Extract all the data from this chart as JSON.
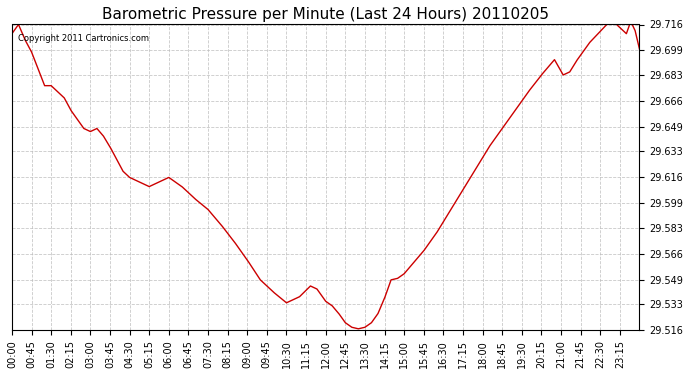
{
  "title": "Barometric Pressure per Minute (Last 24 Hours) 20110205",
  "copyright": "Copyright 2011 Cartronics.com",
  "line_color": "#cc0000",
  "background_color": "#ffffff",
  "grid_color": "#bbbbbb",
  "ylim": [
    29.516,
    29.716
  ],
  "yticks": [
    29.516,
    29.533,
    29.549,
    29.566,
    29.583,
    29.599,
    29.616,
    29.633,
    29.649,
    29.666,
    29.683,
    29.699,
    29.716
  ],
  "xtick_labels": [
    "00:00",
    "00:45",
    "01:30",
    "02:15",
    "03:00",
    "03:45",
    "04:30",
    "05:15",
    "06:00",
    "06:45",
    "07:30",
    "08:15",
    "09:00",
    "09:45",
    "10:30",
    "11:15",
    "12:00",
    "12:45",
    "13:30",
    "14:15",
    "15:00",
    "15:45",
    "16:30",
    "17:15",
    "18:00",
    "18:45",
    "19:30",
    "20:15",
    "21:00",
    "21:45",
    "22:30",
    "23:15"
  ],
  "keypoints_t": [
    0,
    15,
    30,
    45,
    75,
    90,
    105,
    120,
    135,
    165,
    180,
    195,
    210,
    225,
    240,
    255,
    270,
    315,
    360,
    390,
    420,
    450,
    480,
    510,
    540,
    570,
    600,
    630,
    660,
    685,
    700,
    720,
    735,
    750,
    765,
    780,
    795,
    810,
    825,
    840,
    855,
    870,
    885,
    900,
    915,
    945,
    975,
    1005,
    1035,
    1065,
    1095,
    1125,
    1155,
    1185,
    1215,
    1245,
    1265,
    1280,
    1295,
    1310,
    1325,
    1345,
    1365,
    1380,
    1395,
    1410,
    1420,
    1430,
    1440
  ],
  "keypoints_p": [
    29.71,
    29.716,
    29.706,
    29.698,
    29.676,
    29.676,
    29.672,
    29.668,
    29.66,
    29.648,
    29.646,
    29.648,
    29.643,
    29.636,
    29.628,
    29.62,
    29.616,
    29.61,
    29.616,
    29.61,
    29.602,
    29.595,
    29.585,
    29.574,
    29.562,
    29.549,
    29.541,
    29.534,
    29.538,
    29.545,
    29.543,
    29.535,
    29.532,
    29.527,
    29.521,
    29.518,
    29.517,
    29.518,
    29.521,
    29.527,
    29.537,
    29.549,
    29.55,
    29.553,
    29.558,
    29.568,
    29.58,
    29.594,
    29.608,
    29.622,
    29.636,
    29.648,
    29.66,
    29.672,
    29.683,
    29.693,
    29.683,
    29.685,
    29.692,
    29.698,
    29.704,
    29.71,
    29.716,
    29.718,
    29.714,
    29.71,
    29.718,
    29.712,
    29.7
  ]
}
